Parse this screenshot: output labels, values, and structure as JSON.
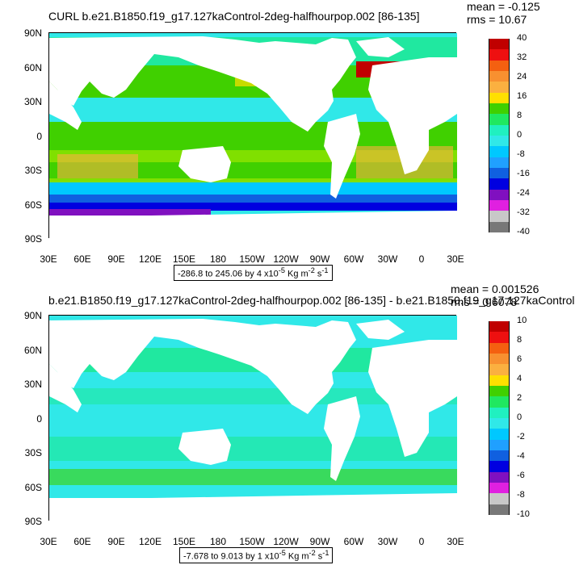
{
  "top": {
    "title": "CURL b.e21.B1850.f19_g17.127kaControl-2deg-halfhourpop.002 [86-135]",
    "mean": "mean = -0.125",
    "rms": "rms = 10.67",
    "range": "-286.8 to 245.06 by 4 x10",
    "range_exp": "-5",
    "range_units": " Kg m",
    "range_units_exp": "-2",
    "range_units_tail": " s",
    "range_units_tail_exp": "-1",
    "legend_labels": [
      "40",
      "32",
      "24",
      "16",
      "8",
      "0",
      "-8",
      "-16",
      "-24",
      "-32",
      "-40"
    ]
  },
  "bottom": {
    "title": "b.e21.B1850.f19_g17.127kaControl-2deg-halfhourpop.002 [86-135] - b.e21.B1850.f19_g17.127kaControl",
    "mean": "mean = 0.001526",
    "rms": "rms = 0.6078",
    "range": "-7.678 to 9.013 by 1 x10",
    "range_exp": "-5",
    "range_units": " Kg m",
    "range_units_exp": "-2",
    "range_units_tail": " s",
    "range_units_tail_exp": "-1",
    "legend_labels": [
      "10",
      "8",
      "6",
      "4",
      "2",
      "0",
      "-2",
      "-4",
      "-6",
      "-8",
      "-10"
    ]
  },
  "lat_labels": [
    "90N",
    "60N",
    "30N",
    "0",
    "30S",
    "60S",
    "90S"
  ],
  "lon_labels": [
    "30E",
    "60E",
    "90E",
    "120E",
    "150E",
    "180",
    "150W",
    "120W",
    "90W",
    "60W",
    "30W",
    "0",
    "30E"
  ],
  "colors": {
    "legend": [
      "#c00000",
      "#ee1010",
      "#f46010",
      "#f89030",
      "#fbb040",
      "#ffe000",
      "#40d000",
      "#20e860",
      "#20f0c0",
      "#30e8e8",
      "#00c8ff",
      "#20a0ff",
      "#1060e0",
      "#0000e0",
      "#8010c0",
      "#e020e0",
      "#c8c8c8",
      "#787878"
    ],
    "ocean_top_base": "#3ee0d8",
    "ocean_bottom_base": "#40e6e0",
    "land": "#ffffff"
  }
}
